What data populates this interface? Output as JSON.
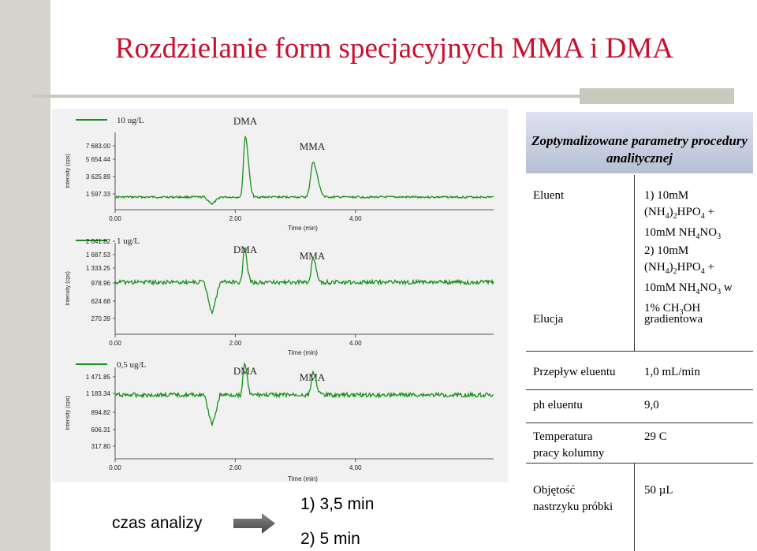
{
  "title": "Rozdzielanie form specjacyjnych MMA i DMA",
  "chart_data": [
    {
      "type": "line",
      "title": "10 ug/L",
      "ylabel": "Intensity (cps)",
      "xlabel": "Time (min)",
      "x_ticks": [
        "0.00",
        "2.00",
        "4.00"
      ],
      "y_ticks": [
        "7 683.00",
        "5 654.44",
        "3 625.89",
        "1 597.33"
      ],
      "xlim": [
        0,
        6.3
      ],
      "ylim": [
        1000,
        8500
      ],
      "baseline": 1700,
      "dip_depth": 380,
      "peak_labels": [
        "DMA",
        "MMA"
      ],
      "series": [
        {
          "x": [
            0,
            1.7,
            1.95,
            2.3,
            2.35,
            2.45,
            3.2,
            3.5,
            3.6,
            6.3
          ],
          "values": [
            1700,
            1700,
            1320,
            1700,
            7683,
            1700,
            1700,
            4900,
            1700,
            1700
          ]
        }
      ]
    },
    {
      "type": "line",
      "title": "1 ug/L",
      "ylabel": "Intensity (cps)",
      "xlabel": "Time (min)",
      "x_ticks": [
        "0.00",
        "2.00",
        "4.00"
      ],
      "y_ticks": [
        "2 041.82",
        "1 687.53",
        "1 333.25",
        "978.96",
        "624.68",
        "270.39"
      ],
      "xlim": [
        0,
        6.3
      ],
      "ylim": [
        270,
        2150
      ],
      "baseline": 1030,
      "dip_depth": 460,
      "peak_labels": [
        "DMA",
        "MMA"
      ],
      "series": [
        {
          "x": [
            0,
            1.8,
            1.95,
            2.3,
            2.35,
            2.45,
            3.2,
            3.5,
            3.6,
            6.3
          ],
          "values": [
            1030,
            1030,
            570,
            1030,
            1400,
            1030,
            1030,
            1200,
            1030,
            1030
          ]
        }
      ]
    },
    {
      "type": "line",
      "title": "0,5 ug/L",
      "ylabel": "Intensity (cps)",
      "xlabel": "Time (min)",
      "x_ticks": [
        "0.00",
        "2.00",
        "4.00"
      ],
      "y_ticks": [
        "1 471.85",
        "1 183.34",
        "894.82",
        "606.31",
        "317.80"
      ],
      "xlim": [
        0,
        6.3
      ],
      "ylim": [
        200,
        1560
      ],
      "baseline": 870,
      "dip_depth": 450,
      "peak_labels": [
        "DMA",
        "MMA"
      ],
      "series": [
        {
          "x": [
            0,
            1.8,
            1.95,
            2.3,
            2.35,
            2.45,
            3.2,
            3.5,
            3.6,
            6.3
          ],
          "values": [
            870,
            870,
            420,
            870,
            1180,
            870,
            870,
            1050,
            870,
            870
          ]
        }
      ]
    }
  ],
  "table": {
    "header": "Zoptymalizowane parametry procedury analitycznej",
    "eluent_label": "Eluent",
    "eluent_1_line1": "1) 10mM",
    "eluent_2_line1": "2) 10mM",
    "elucja_label": "Elucja",
    "elucja_value": "gradientowa",
    "flow_label": "Przepływ eluentu",
    "flow_value": "1,0 mL/min",
    "ph_label": "ph eluentu",
    "ph_value": "9,0",
    "temp_label_1": "Temperatura",
    "temp_label_2": "pracy kolumny",
    "temp_value": "29  C",
    "vol_label_1": "Objętość",
    "vol_label_2": "nastrzyku próbki",
    "vol_value": "50 µL"
  },
  "bottom": {
    "analysis_label": "czas analizy",
    "time_1": "1) 3,5 min",
    "time_2": "2) 5 min"
  },
  "colors": {
    "title": "#c8102e",
    "trace": "#1a8f1a",
    "axis": "#555555"
  }
}
